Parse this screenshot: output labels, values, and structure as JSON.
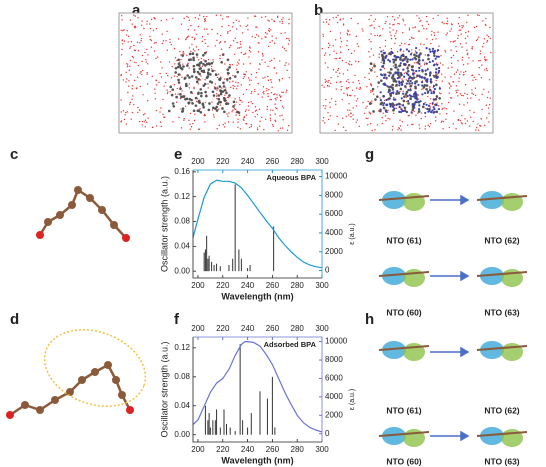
{
  "panels": {
    "a": "a",
    "b": "b",
    "c": "c",
    "d": "d",
    "e": "e",
    "f": "f",
    "g": "g",
    "h": "h"
  },
  "nto": {
    "g": [
      "NTO (61)",
      "NTO (62)",
      "NTO (60)",
      "NTO (63)"
    ],
    "h": [
      "NTO (61)",
      "NTO (62)",
      "NTO (60)",
      "NTO (63)"
    ]
  },
  "chart_data": [
    {
      "type": "spectrum",
      "annotation": "Aqueous BPA",
      "ylabel": "Oscillator strength (a.u.)",
      "y2label": "ε (a.u.)",
      "xlabel": "Wavelength (nm)",
      "xlim": [
        196,
        300
      ],
      "xticks": [
        200,
        220,
        240,
        260,
        280,
        300
      ],
      "x2ticks": [
        200,
        220,
        240,
        260,
        280,
        300
      ],
      "ylim": [
        -0.011,
        0.163
      ],
      "yticks": [
        {
          "value": 0,
          "label": "0.00"
        },
        0.04,
        0.08,
        0.12,
        0.16
      ],
      "y2lim": [
        -800,
        10700
      ],
      "y2ticks": [
        0,
        2000,
        4000,
        6000,
        8000,
        10000
      ],
      "y2color": "#1a9ad6",
      "series": [
        {
          "color": "#333333",
          "x": [
            205,
            206,
            207,
            208,
            209,
            211,
            213,
            215,
            218,
            225,
            228,
            230,
            233,
            235,
            240,
            242,
            261
          ],
          "values": [
            0.03,
            0.035,
            0.057,
            0.02,
            0.025,
            0.015,
            0.01,
            0.012,
            0.008,
            0.01,
            0.02,
            0.14,
            0.035,
            0.02,
            0.005,
            0.01,
            0.072
          ]
        },
        {
          "color": "#1a9ad6",
          "axis": "y2",
          "x": [
            196,
            200,
            205,
            210,
            215,
            220,
            225,
            230,
            235,
            240,
            245,
            250,
            255,
            260,
            265,
            270,
            275,
            280,
            285,
            290,
            295,
            300
          ],
          "values": [
            3500,
            5500,
            7800,
            9200,
            9600,
            9500,
            9500,
            9300,
            8800,
            8000,
            7100,
            6200,
            5300,
            4500,
            3500,
            2700,
            2000,
            1400,
            900,
            600,
            400,
            300
          ]
        }
      ]
    },
    {
      "type": "spectrum",
      "annotation": "Adsorbed BPA",
      "ylabel": "Oscillator strength (a.u.)",
      "y2label": "ε (a.u.)",
      "xlabel": "Wavelength (nm)",
      "xlim": [
        196,
        300
      ],
      "xticks": [
        200,
        220,
        240,
        260,
        280,
        300
      ],
      "x2ticks": [
        200,
        220,
        240,
        260,
        280,
        300
      ],
      "ylim": [
        -0.01,
        0.135
      ],
      "yticks": [
        {
          "value": 0,
          "label": "0.00"
        },
        0.04,
        0.08,
        0.12
      ],
      "y2lim": [
        -900,
        10500
      ],
      "y2ticks": [
        0,
        2000,
        4000,
        6000,
        8000,
        10000
      ],
      "y2color": "#6a75d0",
      "series": [
        {
          "color": "#333333",
          "x": [
            206,
            208,
            209,
            210,
            212,
            214,
            215,
            218,
            221,
            223,
            226,
            230,
            234,
            236,
            240,
            243,
            250,
            256,
            260,
            262
          ],
          "values": [
            0.04,
            0.02,
            0.03,
            0.01,
            0.02,
            0.02,
            0.035,
            0.01,
            0.035,
            0.015,
            0.01,
            0.005,
            0.125,
            0.02,
            0.01,
            0.03,
            0.06,
            0.05,
            0.08,
            0.01
          ]
        },
        {
          "color": "#6a75d0",
          "axis": "y2",
          "x": [
            196,
            200,
            205,
            210,
            215,
            220,
            225,
            230,
            235,
            238,
            240,
            245,
            250,
            255,
            260,
            265,
            270,
            275,
            280,
            285,
            290,
            295,
            300
          ],
          "values": [
            1000,
            1500,
            3000,
            4500,
            5500,
            6000,
            7000,
            8500,
            9700,
            10000,
            10000,
            9900,
            9500,
            8600,
            7500,
            6000,
            4500,
            3200,
            2000,
            1200,
            700,
            400,
            200
          ]
        }
      ]
    }
  ]
}
